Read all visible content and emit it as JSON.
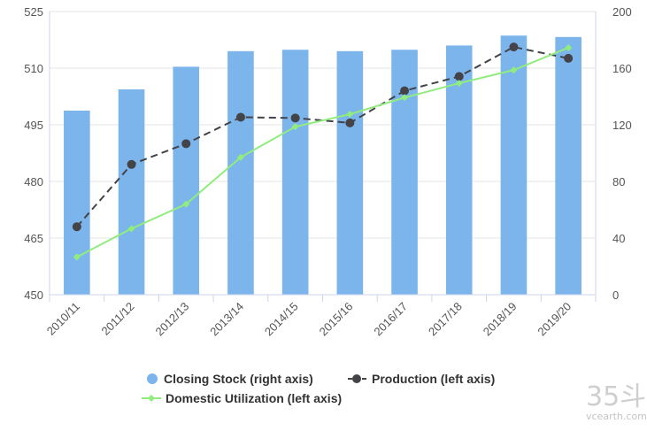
{
  "chart_data": {
    "type": "bar+line",
    "categories": [
      "2010/11",
      "2011/12",
      "2012/13",
      "2013/14",
      "2014/15",
      "2015/16",
      "2016/17",
      "2017/18",
      "2018/19",
      "2019/20"
    ],
    "left_axis": {
      "range": [
        450,
        525
      ],
      "ticks": [
        450,
        465,
        480,
        495,
        510,
        525
      ]
    },
    "right_axis": {
      "range": [
        0,
        200
      ],
      "ticks": [
        0,
        40,
        80,
        120,
        160,
        200
      ]
    },
    "series": [
      {
        "name": "Closing Stock (right axis)",
        "type": "bar",
        "axis": "right",
        "color": "#7cb5ec",
        "values": [
          130,
          145,
          161,
          172,
          173,
          172,
          173,
          176,
          183,
          182
        ]
      },
      {
        "name": "Production (left axis)",
        "type": "line",
        "axis": "left",
        "color": "#434348",
        "dash": "dashed",
        "values": [
          468,
          484.5,
          490,
          497,
          496.8,
          495.5,
          504,
          507.8,
          515.6,
          512.6
        ]
      },
      {
        "name": "Domestic Utilization (left axis)",
        "type": "line",
        "axis": "left",
        "color": "#90ed7d",
        "values": [
          460,
          467.5,
          474,
          486.4,
          494.5,
          497.8,
          502.2,
          506,
          509.5,
          515.4
        ]
      }
    ],
    "legend_position": "bottom-center",
    "grid": true
  },
  "watermark": {
    "mark": "35斗",
    "site": "vcearth.com"
  }
}
